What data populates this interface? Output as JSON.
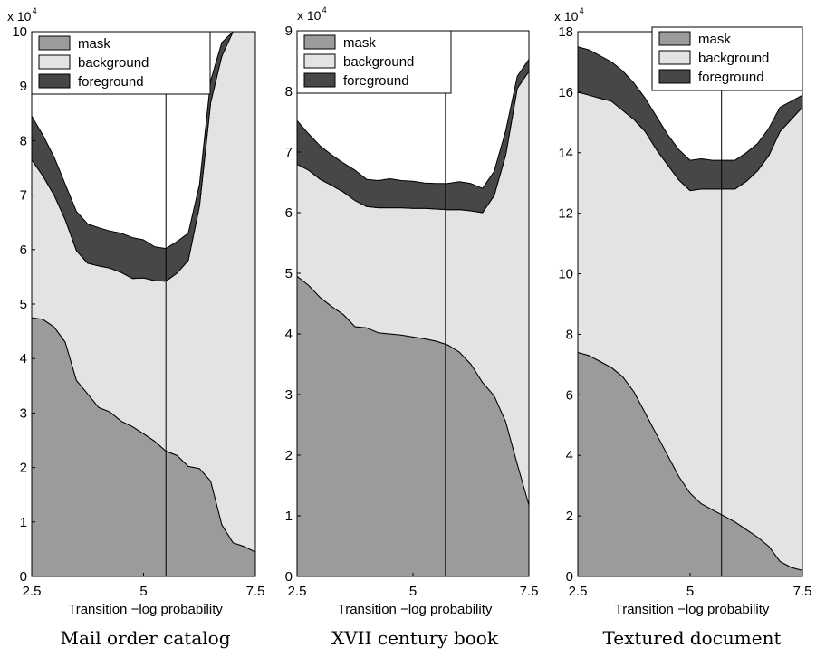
{
  "chart_data": [
    {
      "type": "area",
      "stacked": true,
      "caption": "Mail order catalog",
      "xlabel": "Transition −log probability",
      "ylabel": "",
      "y_multiplier": {
        "base": "x 10",
        "exponent": "4"
      },
      "xlim": [
        2.5,
        7.5
      ],
      "ylim": [
        0,
        10
      ],
      "xticks": [
        2.5,
        5,
        7.5
      ],
      "xtick_labels": [
        "2.5",
        "5",
        "7.5"
      ],
      "yticks": [
        0,
        1,
        2,
        3,
        4,
        5,
        6,
        7,
        8,
        9,
        10
      ],
      "ytick_labels": [
        "0",
        "1",
        "2",
        "3",
        "4",
        "5",
        "6",
        "7",
        "8",
        "9",
        "10"
      ],
      "vline_x": 5.5,
      "legend": {
        "position": "top",
        "entries": [
          "mask",
          "background",
          "foreground"
        ]
      },
      "x": [
        2.5,
        2.75,
        3.0,
        3.25,
        3.5,
        3.75,
        4.0,
        4.25,
        4.5,
        4.75,
        5.0,
        5.25,
        5.5,
        5.75,
        6.0,
        6.25,
        6.5,
        6.75,
        7.0,
        7.25,
        7.5
      ],
      "series": [
        {
          "name": "mask",
          "values": [
            4.75,
            4.72,
            4.58,
            4.3,
            3.6,
            3.35,
            3.1,
            3.02,
            2.85,
            2.75,
            2.62,
            2.48,
            2.3,
            2.22,
            2.02,
            1.98,
            1.75,
            0.95,
            0.62,
            0.55,
            0.45
          ]
        },
        {
          "name": "background",
          "values": [
            2.9,
            2.63,
            2.42,
            2.25,
            2.38,
            2.4,
            2.6,
            2.64,
            2.73,
            2.72,
            2.86,
            2.95,
            3.12,
            3.35,
            3.78,
            4.82,
            6.95,
            8.6,
            9.38,
            9.45,
            9.55
          ]
        },
        {
          "name": "foreground",
          "values": [
            0.8,
            0.75,
            0.7,
            0.65,
            0.72,
            0.72,
            0.7,
            0.68,
            0.72,
            0.75,
            0.7,
            0.62,
            0.6,
            0.58,
            0.5,
            0.4,
            0.4,
            0.25,
            0.0,
            0.0,
            0.0
          ]
        }
      ]
    },
    {
      "type": "area",
      "stacked": true,
      "caption": "XVII century book",
      "xlabel": "Transition −log probability",
      "ylabel": "",
      "y_multiplier": {
        "base": "x 10",
        "exponent": "4"
      },
      "xlim": [
        2.5,
        7.5
      ],
      "ylim": [
        0,
        9
      ],
      "xticks": [
        2.5,
        5,
        7.5
      ],
      "xtick_labels": [
        "2.5",
        "5",
        "7.5"
      ],
      "yticks": [
        0,
        1,
        2,
        3,
        4,
        5,
        6,
        7,
        8,
        9
      ],
      "ytick_labels": [
        "0",
        "1",
        "2",
        "3",
        "4",
        "5",
        "6",
        "7",
        "8",
        "9"
      ],
      "vline_x": 5.7,
      "legend": {
        "position": "top",
        "entries": [
          "mask",
          "background",
          "foreground"
        ]
      },
      "x": [
        2.5,
        2.75,
        3.0,
        3.25,
        3.5,
        3.75,
        4.0,
        4.25,
        4.5,
        4.75,
        5.0,
        5.25,
        5.5,
        5.75,
        6.0,
        6.25,
        6.5,
        6.75,
        7.0,
        7.25,
        7.5
      ],
      "series": [
        {
          "name": "mask",
          "values": [
            4.95,
            4.8,
            4.6,
            4.45,
            4.32,
            4.12,
            4.1,
            4.02,
            4.0,
            3.98,
            3.95,
            3.92,
            3.88,
            3.82,
            3.7,
            3.5,
            3.2,
            2.98,
            2.55,
            1.85,
            1.18
          ]
        },
        {
          "name": "background",
          "values": [
            1.85,
            1.9,
            1.95,
            2.0,
            2.02,
            2.08,
            2.0,
            2.06,
            2.08,
            2.1,
            2.12,
            2.15,
            2.18,
            2.23,
            2.35,
            2.53,
            2.8,
            3.3,
            4.4,
            6.2,
            7.15
          ]
        },
        {
          "name": "foreground",
          "values": [
            0.72,
            0.6,
            0.55,
            0.5,
            0.48,
            0.5,
            0.45,
            0.45,
            0.48,
            0.45,
            0.45,
            0.42,
            0.42,
            0.43,
            0.46,
            0.45,
            0.4,
            0.4,
            0.4,
            0.2,
            0.2
          ]
        }
      ]
    },
    {
      "type": "area",
      "stacked": true,
      "caption": "Textured document",
      "xlabel": "Transition −log probability",
      "ylabel": "",
      "y_multiplier": {
        "base": "x 10",
        "exponent": "4"
      },
      "xlim": [
        2.5,
        7.5
      ],
      "ylim": [
        0,
        18
      ],
      "xticks": [
        2.5,
        5,
        7.5
      ],
      "xtick_labels": [
        "2.5",
        "5",
        "7.5"
      ],
      "yticks": [
        0,
        2,
        4,
        6,
        8,
        10,
        12,
        14,
        16,
        18
      ],
      "ytick_labels": [
        "0",
        "2",
        "4",
        "6",
        "8",
        "10",
        "12",
        "14",
        "16",
        "18"
      ],
      "vline_x": 5.7,
      "legend": {
        "position": "top",
        "entries": [
          "mask",
          "background",
          "foreground"
        ]
      },
      "x": [
        2.5,
        2.75,
        3.0,
        3.25,
        3.5,
        3.75,
        4.0,
        4.25,
        4.5,
        4.75,
        5.0,
        5.25,
        5.5,
        5.75,
        6.0,
        6.25,
        6.5,
        6.75,
        7.0,
        7.25,
        7.5
      ],
      "series": [
        {
          "name": "mask",
          "values": [
            7.4,
            7.3,
            7.1,
            6.9,
            6.6,
            6.1,
            5.4,
            4.7,
            4.0,
            3.3,
            2.75,
            2.4,
            2.2,
            2.0,
            1.8,
            1.55,
            1.3,
            1.0,
            0.5,
            0.3,
            0.2
          ]
        },
        {
          "name": "background",
          "values": [
            8.6,
            8.6,
            8.7,
            8.8,
            8.8,
            9.0,
            9.3,
            9.4,
            9.6,
            9.8,
            10.0,
            10.4,
            10.6,
            10.8,
            11.0,
            11.5,
            12.1,
            12.9,
            14.2,
            14.8,
            15.3
          ]
        },
        {
          "name": "foreground",
          "values": [
            1.5,
            1.5,
            1.4,
            1.3,
            1.3,
            1.2,
            1.1,
            1.1,
            1.0,
            1.0,
            1.0,
            1.0,
            0.95,
            0.95,
            0.95,
            0.95,
            0.9,
            0.9,
            0.8,
            0.6,
            0.4
          ]
        }
      ]
    }
  ],
  "colors": {
    "mask": "#9b9b9b",
    "background": "#e3e3e3",
    "foreground": "#474747"
  }
}
